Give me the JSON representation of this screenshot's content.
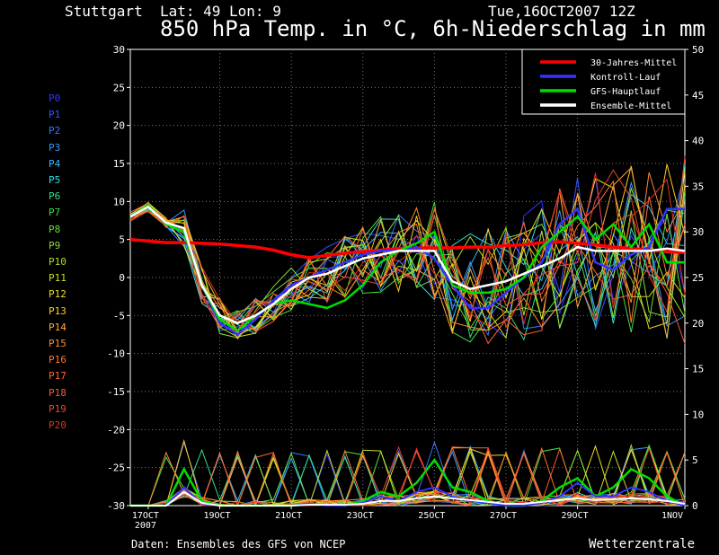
{
  "header": {
    "location": "Stuttgart  Lat: 49 Lon: 9",
    "datetime": "Tue,16OCT2007 12Z",
    "title": "850 hPa Temp. in °C, 6h-Niederschlag in mm"
  },
  "footer": {
    "source": "Daten: Ensembles des GFS von NCEP",
    "brand": "Wetterzentrale"
  },
  "members": [
    {
      "label": "P0",
      "color": "#3333ff"
    },
    {
      "label": "P1",
      "color": "#3355ff"
    },
    {
      "label": "P2",
      "color": "#3377ff"
    },
    {
      "label": "P3",
      "color": "#3399ff"
    },
    {
      "label": "P4",
      "color": "#33bbff"
    },
    {
      "label": "P5",
      "color": "#33dddd"
    },
    {
      "label": "P6",
      "color": "#33dd88"
    },
    {
      "label": "P7",
      "color": "#44dd44"
    },
    {
      "label": "P8",
      "color": "#66dd33"
    },
    {
      "label": "P9",
      "color": "#88dd33"
    },
    {
      "label": "P10",
      "color": "#aadd22"
    },
    {
      "label": "P11",
      "color": "#ccdd22"
    },
    {
      "label": "P12",
      "color": "#eedd22"
    },
    {
      "label": "P13",
      "color": "#ffcc22"
    },
    {
      "label": "P14",
      "color": "#ffaa33"
    },
    {
      "label": "P15",
      "color": "#ff8833"
    },
    {
      "label": "P16",
      "color": "#ff7733"
    },
    {
      "label": "P17",
      "color": "#ff6633"
    },
    {
      "label": "P18",
      "color": "#ff5533"
    },
    {
      "label": "P19",
      "color": "#ee4433"
    },
    {
      "label": "P20",
      "color": "#dd3322"
    }
  ],
  "chart_data": {
    "type": "line",
    "xlabel": "",
    "ylabel": "",
    "y2label": "",
    "x_ticks": [
      "17OCT\n2007",
      "19OCT",
      "21OCT",
      "23OCT",
      "25OCT",
      "27OCT",
      "29OCT",
      "1NOV"
    ],
    "x_tick_days": [
      17,
      19,
      21,
      23,
      25,
      27,
      29,
      32
    ],
    "x_range": [
      16.5,
      32
    ],
    "ylim": [
      -30,
      30
    ],
    "y_ticks": [
      30,
      25,
      20,
      15,
      10,
      5,
      0,
      -5,
      -10,
      -15,
      -20,
      -25,
      -30
    ],
    "y2lim": [
      0,
      50
    ],
    "y2_ticks": [
      50,
      45,
      40,
      35,
      30,
      25,
      20,
      15,
      10,
      5,
      0
    ],
    "grid": true,
    "legend_position": "top-right",
    "legend": [
      {
        "label": "30-Jahres-Mittel",
        "color": "#ff0000"
      },
      {
        "label": "Kontroll-Lauf",
        "color": "#3333ff"
      },
      {
        "label": "GFS-Hauptlauf",
        "color": "#00dd00"
      },
      {
        "label": "Ensemble-Mittel",
        "color": "#ffffff"
      }
    ],
    "temperature": {
      "x_days": [
        16.5,
        17,
        17.5,
        18,
        18.5,
        19,
        19.5,
        20,
        20.5,
        21,
        21.5,
        22,
        22.5,
        23,
        23.5,
        24,
        24.5,
        25,
        25.5,
        26,
        26.5,
        27,
        27.5,
        28,
        28.5,
        29,
        29.5,
        30,
        30.5,
        31,
        31.5,
        32
      ],
      "series": [
        {
          "name": "30-Jahres-Mittel",
          "values": [
            5,
            4.8,
            4.6,
            4.6,
            4.5,
            4.4,
            4.2,
            4,
            3.6,
            3,
            2.6,
            2.9,
            3.2,
            3.4,
            3.6,
            3.8,
            3.9,
            3.9,
            3.9,
            4,
            4,
            4.2,
            4.3,
            4.6,
            4.7,
            4.5,
            4.3,
            4,
            3.8,
            3.6,
            3.4,
            3.3
          ]
        },
        {
          "name": "Kontroll-Lauf",
          "values": [
            8,
            9.5,
            7,
            6,
            -1,
            -6,
            -7.5,
            -5.5,
            -3,
            -1,
            0,
            1,
            2,
            3,
            3.5,
            3.5,
            4,
            2.5,
            -1,
            -4,
            -4,
            -2,
            0,
            2,
            7,
            9,
            2,
            1,
            3,
            4,
            9,
            9
          ]
        },
        {
          "name": "GFS-Hauptlauf",
          "values": [
            8,
            9.5,
            7,
            6,
            -1,
            -5.5,
            -7,
            -5,
            -3.5,
            -3,
            -3.5,
            -4,
            -3,
            -1,
            2,
            3.5,
            4.5,
            6,
            -1,
            -2,
            -2,
            -1.5,
            0,
            4,
            6,
            8,
            5,
            7,
            4,
            7,
            2,
            2
          ]
        },
        {
          "name": "Ensemble-Mittel",
          "values": [
            8,
            9.3,
            7.2,
            6.5,
            -1,
            -5,
            -6,
            -5,
            -3.5,
            -1.5,
            0,
            0.5,
            1.5,
            2.5,
            3,
            3.5,
            3.5,
            3.5,
            -0.5,
            -1.5,
            -1,
            -0.5,
            0.5,
            1.5,
            2.5,
            4,
            3.5,
            3.5,
            3.5,
            3.5,
            3.8,
            3.5
          ]
        }
      ]
    },
    "precipitation": {
      "x_days": [
        16.5,
        17,
        17.5,
        18,
        18.5,
        19,
        19.5,
        20,
        20.5,
        21,
        21.5,
        22,
        22.5,
        23,
        23.5,
        24,
        24.5,
        25,
        25.5,
        26,
        26.5,
        27,
        27.5,
        28,
        28.5,
        29,
        29.5,
        30,
        30.5,
        31,
        31.5,
        32
      ],
      "series": [
        {
          "name": "GFS-Hauptlauf",
          "values": [
            0,
            0,
            0,
            4,
            0.5,
            0,
            0,
            0,
            0,
            0,
            0.2,
            0.1,
            0,
            0.5,
            1.5,
            1,
            2.5,
            5,
            2,
            1.5,
            0.5,
            0,
            0,
            0.5,
            2,
            3,
            1,
            2,
            4,
            3,
            1,
            0
          ]
        },
        {
          "name": "Kontroll-Lauf",
          "values": [
            0,
            0,
            0,
            2,
            0.2,
            0,
            0,
            0,
            0,
            0,
            0.2,
            0,
            0,
            0.3,
            1,
            0.5,
            1.5,
            2,
            1,
            0.5,
            0.3,
            0,
            0,
            0.3,
            1,
            2.5,
            1,
            1,
            2,
            1.5,
            0.5,
            0
          ]
        },
        {
          "name": "Ensemble-Mittel",
          "values": [
            0,
            0,
            0,
            1.5,
            0.3,
            0,
            0,
            0,
            0,
            0,
            0.1,
            0.1,
            0.1,
            0.2,
            0.5,
            0.5,
            0.8,
            1,
            0.8,
            0.6,
            0.4,
            0.2,
            0.2,
            0.4,
            0.6,
            0.8,
            0.6,
            0.7,
            0.8,
            0.7,
            0.5,
            0.2
          ]
        }
      ]
    }
  }
}
